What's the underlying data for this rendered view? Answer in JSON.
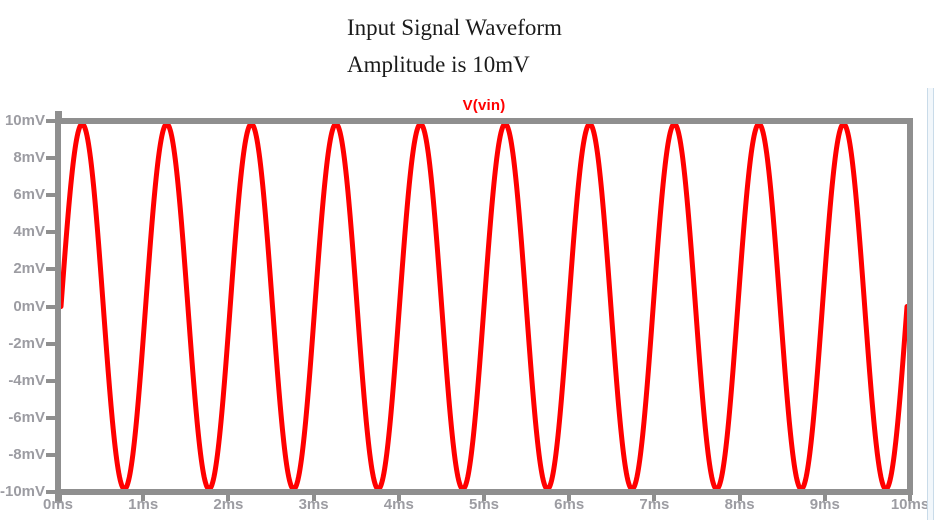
{
  "title": {
    "line1": "Input Signal Waveform",
    "line2": "Amplitude is 10mV"
  },
  "legend": {
    "label": "V(vin)",
    "position": "top-center"
  },
  "chart_data": {
    "type": "line",
    "title": "Input Signal Waveform",
    "subtitle": "Amplitude is 10mV",
    "legend_entries": [
      "V(vin)"
    ],
    "legend_position": "top-center",
    "grid": false,
    "x": {
      "unit": "ms",
      "min_ms": 0,
      "max_ms": 10,
      "tick_step_ms": 1,
      "tick_labels": [
        "0ms",
        "1ms",
        "2ms",
        "3ms",
        "4ms",
        "5ms",
        "6ms",
        "7ms",
        "8ms",
        "9ms",
        "10ms"
      ]
    },
    "y": {
      "unit": "mV",
      "min_mV": -10,
      "max_mV": 10,
      "tick_step_mV": 2,
      "tick_labels": [
        "10mV",
        "8mV",
        "6mV",
        "4mV",
        "2mV",
        "0mV",
        "-2mV",
        "-4mV",
        "-6mV",
        "-8mV",
        "-10mV"
      ]
    },
    "series": [
      {
        "name": "V(vin)",
        "color": "#ff0000",
        "waveform": "sine",
        "amplitude_mV": 10,
        "offset_mV": 0,
        "frequency_hz": 1000,
        "phase_deg": 0,
        "cycles_shown": 10,
        "stroke_width_px": 5
      }
    ]
  },
  "colors": {
    "axis": "#8f8f8f",
    "tick_labels": "#9c9ca2",
    "trace": "#ff0000",
    "legend_text": "#ff0000",
    "background": "#ffffff",
    "window_edge": "#c9dbe9"
  }
}
